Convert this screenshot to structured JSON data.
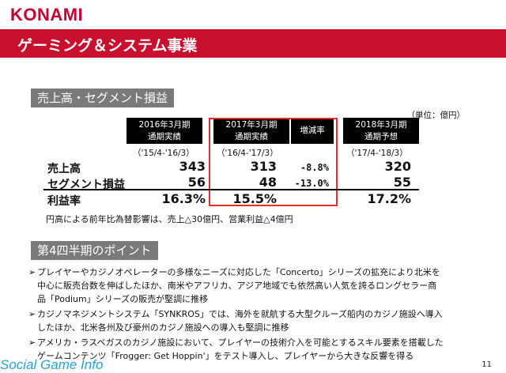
{
  "logo": "KONAMI",
  "title": "ゲーミング＆システム事業",
  "section1": {
    "heading": "売上高・セグメント損益"
  },
  "unit": "（単位：億円）",
  "columns": [
    {
      "line1": "2016年3月期",
      "line2": "通期実績",
      "period": "（'15/4-'16/3）"
    },
    {
      "line1": "2017年3月期",
      "line2": "通期実績",
      "period": "（'16/4-'17/3）"
    },
    {
      "line1": "増減率",
      "line2": "",
      "period": ""
    },
    {
      "line1": "2018年3月期",
      "line2": "通期予想",
      "period": "（'17/4-'18/3）"
    }
  ],
  "rows": [
    {
      "label": "売上高",
      "v2016": "343",
      "v2017": "313",
      "change": "-8.8%",
      "v2018": "320"
    },
    {
      "label": "セグメント損益",
      "v2016": "56",
      "v2017": "48",
      "change": "-13.0%",
      "v2018": "55"
    },
    {
      "label": "利益率",
      "v2016": "16.3%",
      "v2017": "15.5%",
      "change": "",
      "v2018": "17.2%"
    }
  ],
  "fx_note": "円高による前年比為替影響は、売上△30億円、営業利益△4億円",
  "section2": {
    "heading": "第4四半期のポイント"
  },
  "bullets": [
    {
      "line1": "プレイヤーやカジノオペレーターの多様なニーズに対応した「Concerto」シリーズの拡充により北米を",
      "line2": "中心に販売台数を伸ばしたほか、南米やアフリカ、アジア地域でも依然高い人気を誇るロングセラー商",
      "line3": "品「Podium」シリーズの販売が堅調に推移"
    },
    {
      "line1": "カジノマネジメントシステム「SYNKROS」では、海外を就航する大型クルーズ船内のカジノ施設へ導入",
      "line2": "したほか、北米各州及び豪州のカジノ施設への導入も堅調に推移",
      "line3": ""
    },
    {
      "line1": "アメリカ・ラスベガスのカジノ施設において、プレイヤーの技術介入を可能とするスキル要素を搭載した",
      "line2": "ゲームコンテンツ「Frogger: Get Hoppin'」をテスト導入し、プレイヤーから大きな反響を得る",
      "line3": ""
    }
  ],
  "bullet_mark": "➢",
  "watermark": "Social Game Info",
  "page_number": "11",
  "colors": {
    "brand_red": "#c8102e",
    "highlight_border": "#e03030",
    "section_gray": "#7a7a7a"
  }
}
